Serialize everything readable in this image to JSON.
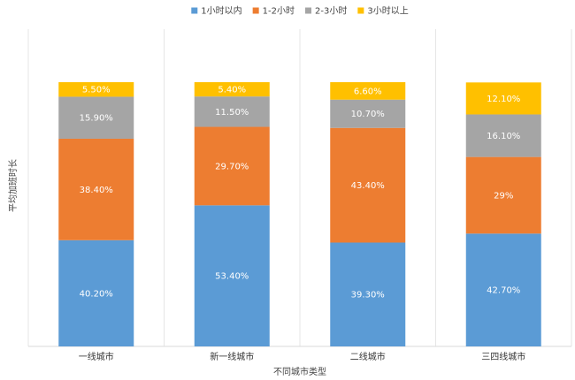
{
  "chart_data": {
    "type": "bar",
    "stacked": true,
    "title": "",
    "xlabel": "不同城市类型",
    "ylabel": "平均加班时长",
    "categories": [
      "一线城市",
      "新一线城市",
      "二线城市",
      "三四线城市"
    ],
    "series": [
      {
        "name": "1小时以内",
        "color": "#5B9BD5",
        "values": [
          40.2,
          53.4,
          39.3,
          42.7
        ],
        "labels": [
          "40.20%",
          "53.40%",
          "39.30%",
          "42.70%"
        ]
      },
      {
        "name": "1-2小时",
        "color": "#ED7D31",
        "values": [
          38.4,
          29.7,
          43.4,
          29.0
        ],
        "labels": [
          "38.40%",
          "29.70%",
          "43.40%",
          "29%"
        ]
      },
      {
        "name": "2-3小时",
        "color": "#A5A5A5",
        "values": [
          15.9,
          11.5,
          10.7,
          16.1
        ],
        "labels": [
          "15.90%",
          "11.50%",
          "10.70%",
          "16.10%"
        ]
      },
      {
        "name": "3小时以上",
        "color": "#FFC000",
        "values": [
          5.5,
          5.4,
          6.6,
          12.1
        ],
        "labels": [
          "5.50%",
          "5.40%",
          "6.60%",
          "12.10%"
        ]
      }
    ],
    "ylim": [
      0,
      100
    ],
    "legend_position": "top",
    "grid": "vertical category separators"
  }
}
